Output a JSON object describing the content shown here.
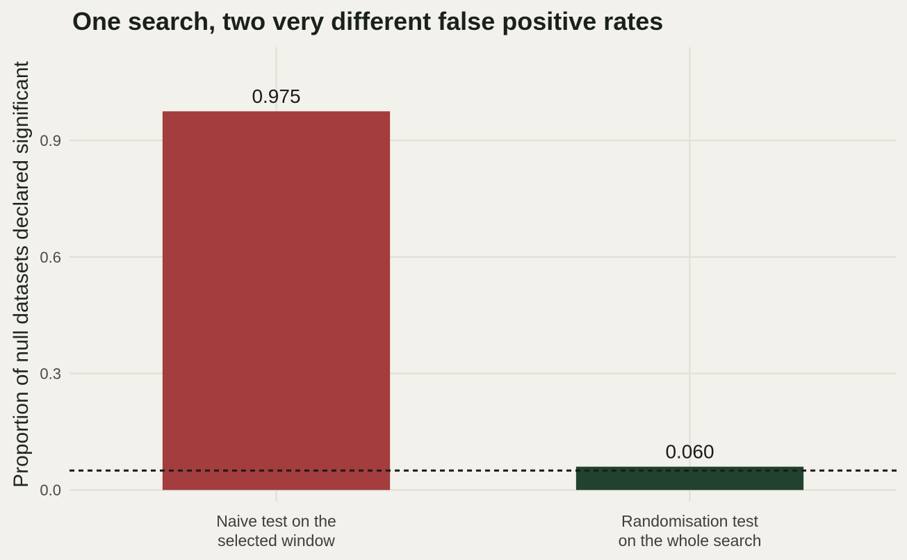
{
  "chart_data": {
    "type": "bar",
    "title": "One search, two very different false positive rates",
    "xlabel": "",
    "ylabel": "Proportion of null datasets declared significant",
    "categories": [
      [
        "Naive test on the",
        "selected window"
      ],
      [
        "Randomisation test",
        "on the whole search"
      ]
    ],
    "values": [
      0.975,
      0.06
    ],
    "value_labels": [
      "0.975",
      "0.060"
    ],
    "colors": [
      "#a33d3e",
      "#21422e"
    ],
    "ylim": [
      -0.03,
      1.14
    ],
    "yticks": [
      0.0,
      0.3,
      0.6,
      0.9
    ],
    "ytick_labels": [
      "0.0",
      "0.3",
      "0.6",
      "0.9"
    ],
    "reference_line": {
      "y": 0.05,
      "style": "dotted"
    },
    "grid": true,
    "legend": "none"
  }
}
